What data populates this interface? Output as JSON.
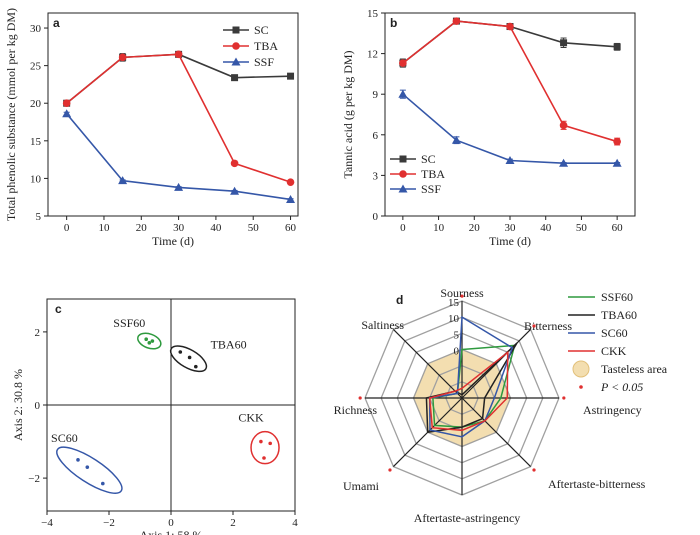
{
  "colors": {
    "SC": "#3a3a3a",
    "TBA": "#e03030",
    "SSF": "#3557a8",
    "SC60": "#3557a8",
    "TBA60": "#222222",
    "SSF60": "#2e9a3e",
    "CKK": "#e03030"
  },
  "chart_data": [
    {
      "panel": "a",
      "type": "line",
      "xlabel": "Time (d)",
      "ylabel": "Total phenolic substance (mmol per kg DM)",
      "xlim": [
        -5,
        62
      ],
      "ylim": [
        5,
        32
      ],
      "xticks": [
        "0",
        "10",
        "20",
        "30",
        "40",
        "50",
        "60"
      ],
      "yticks": [
        "5",
        "10",
        "15",
        "20",
        "25",
        "30"
      ],
      "legend_position": "top-right",
      "series": [
        {
          "name": "SC",
          "marker": "square",
          "x": [
            0,
            15,
            30,
            45,
            60
          ],
          "values": [
            20.0,
            26.1,
            26.5,
            23.4,
            23.6
          ],
          "err": [
            0,
            0.5,
            0.2,
            0.3,
            0.1
          ]
        },
        {
          "name": "TBA",
          "marker": "circle",
          "x": [
            0,
            15,
            30,
            45,
            60
          ],
          "values": [
            20.0,
            26.1,
            26.5,
            12.0,
            9.5
          ],
          "err": [
            0,
            0,
            0,
            0,
            0
          ]
        },
        {
          "name": "SSF",
          "marker": "triangle",
          "x": [
            0,
            15,
            30,
            45,
            60
          ],
          "values": [
            18.6,
            9.7,
            8.8,
            8.3,
            7.2
          ],
          "err": [
            0.2,
            0.1,
            0.1,
            0.1,
            0.1
          ]
        }
      ]
    },
    {
      "panel": "b",
      "type": "line",
      "xlabel": "Time (d)",
      "ylabel": "Tannic acid (g per kg DM)",
      "xlim": [
        -5,
        65
      ],
      "ylim": [
        0,
        15
      ],
      "xticks": [
        "0",
        "10",
        "20",
        "30",
        "40",
        "50",
        "60"
      ],
      "yticks": [
        "0",
        "3",
        "6",
        "9",
        "12",
        "15"
      ],
      "legend_position": "bottom-left",
      "series": [
        {
          "name": "SC",
          "marker": "square",
          "x": [
            0,
            15,
            30,
            45,
            60
          ],
          "values": [
            11.3,
            14.4,
            14.0,
            12.8,
            12.5
          ],
          "err": [
            0.3,
            0.1,
            0.1,
            0.35,
            0.25
          ]
        },
        {
          "name": "TBA",
          "marker": "circle",
          "x": [
            0,
            15,
            30,
            45,
            60
          ],
          "values": [
            11.3,
            14.4,
            14.0,
            6.7,
            5.5
          ],
          "err": [
            0,
            0,
            0,
            0.3,
            0.25
          ]
        },
        {
          "name": "SSF",
          "marker": "triangle",
          "x": [
            0,
            15,
            30,
            45,
            60
          ],
          "values": [
            9.0,
            5.6,
            4.1,
            3.9,
            3.9
          ],
          "err": [
            0.3,
            0.25,
            0.1,
            0.05,
            0.05
          ]
        }
      ]
    },
    {
      "panel": "c",
      "type": "scatter",
      "xlabel": "Axis 1: 58 %",
      "ylabel": "Axis 2: 30.8 %",
      "xlim": [
        -4,
        4
      ],
      "ylim": [
        -2.9,
        2.9
      ],
      "xticks": [
        "−4",
        "−2",
        "0",
        "2",
        "4"
      ],
      "yticks": [
        "−2",
        "0",
        "2"
      ],
      "groups": [
        {
          "name": "SSF60",
          "points": [
            [
              -0.8,
              1.8
            ],
            [
              -0.6,
              1.75
            ],
            [
              -0.7,
              1.7
            ]
          ]
        },
        {
          "name": "TBA60",
          "points": [
            [
              0.3,
              1.45
            ],
            [
              0.6,
              1.3
            ],
            [
              0.8,
              1.05
            ]
          ]
        },
        {
          "name": "SC60",
          "points": [
            [
              -3.0,
              -1.5
            ],
            [
              -2.7,
              -1.7
            ],
            [
              -2.2,
              -2.15
            ]
          ]
        },
        {
          "name": "CKK",
          "points": [
            [
              2.9,
              -1.0
            ],
            [
              3.2,
              -1.05
            ],
            [
              3.0,
              -1.45
            ]
          ]
        }
      ]
    },
    {
      "panel": "d",
      "type": "radar",
      "axes": [
        "Sourness",
        "Bitterness",
        "Astringency",
        "Aftertaste-bitterness",
        "Aftertaste-astringency",
        "Umami",
        "Richness",
        "Saltiness"
      ],
      "significant": [
        true,
        true,
        true,
        true,
        false,
        true,
        true,
        false
      ],
      "rlim": [
        -15,
        15
      ],
      "rticks": [
        "15",
        "10",
        "5",
        "0"
      ],
      "tasteless_value": 0,
      "legend_position": "right",
      "series": [
        {
          "name": "SSF60",
          "values": [
            0,
            8,
            -3,
            -5,
            -6,
            -3,
            -6,
            -13
          ]
        },
        {
          "name": "TBA60",
          "values": [
            -14,
            9,
            -8,
            -6,
            -6,
            0,
            -4,
            -12
          ]
        },
        {
          "name": "SC60",
          "values": [
            10,
            7,
            -5,
            -5,
            -3,
            -1,
            -5,
            -13
          ]
        },
        {
          "name": "CKK",
          "values": [
            -12,
            5,
            -1,
            -5,
            -5,
            -2,
            -5,
            -12
          ]
        }
      ],
      "legend_extra": [
        "Tasteless area",
        "P < 0.05"
      ]
    }
  ]
}
